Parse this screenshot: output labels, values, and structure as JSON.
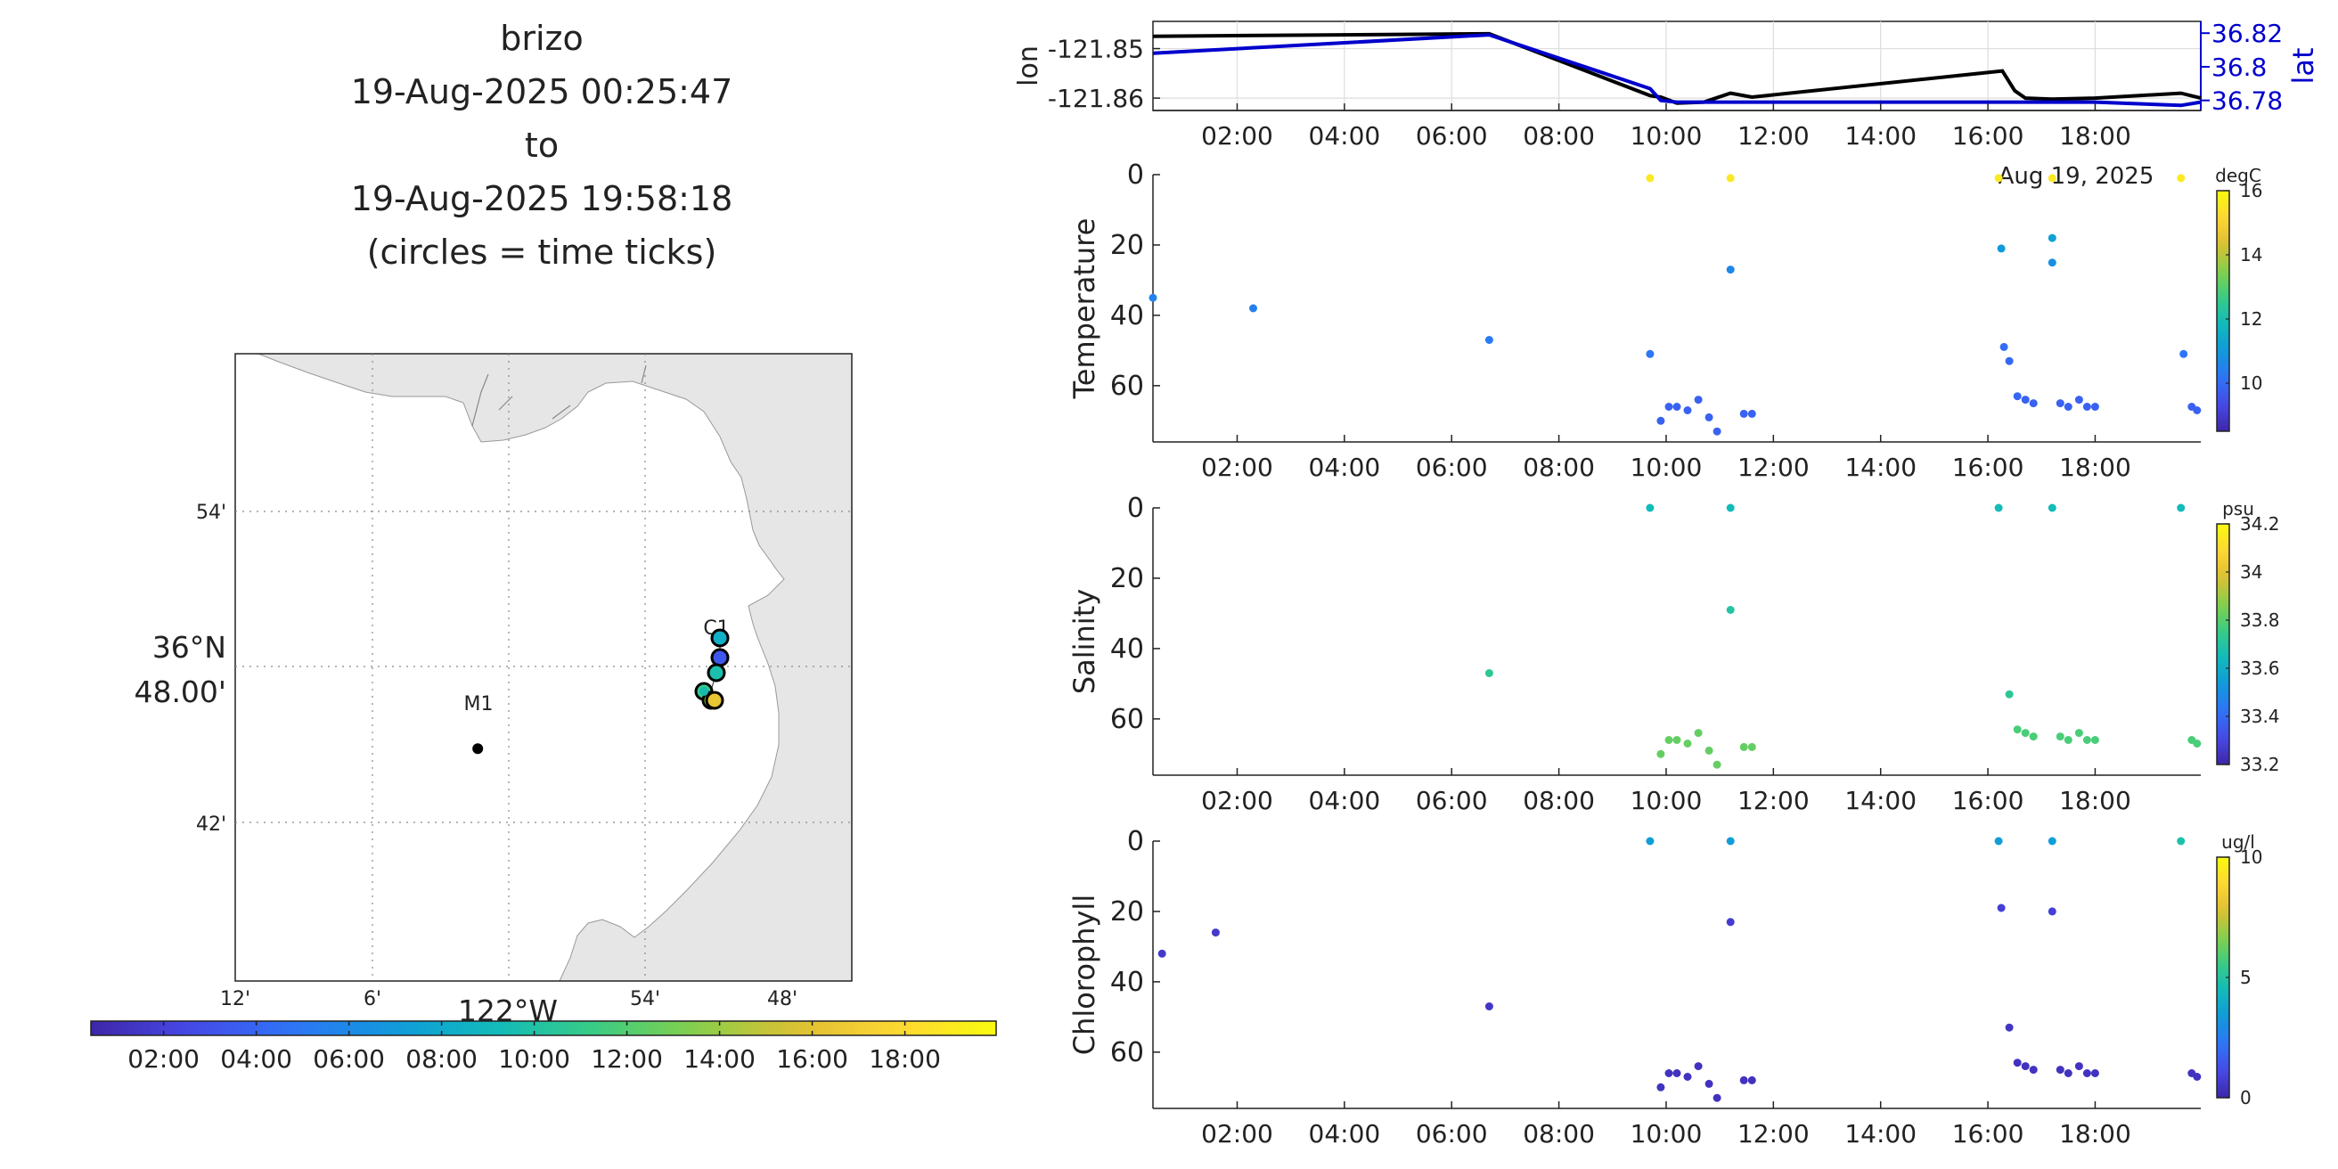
{
  "title_lines": [
    "brizo",
    "19-Aug-2025 00:25:47",
    "to",
    "19-Aug-2025 19:58:18",
    "(circles = time ticks)"
  ],
  "time_ticks": [
    "02:00",
    "04:00",
    "06:00",
    "08:00",
    "10:00",
    "12:00",
    "14:00",
    "16:00",
    "18:00"
  ],
  "date_label": "Aug 19, 2025",
  "map": {
    "lat_ticks": [
      "54'",
      "48.00'",
      "42'"
    ],
    "lat_center_label": "36°N",
    "lon_ticks": [
      "12'",
      "6'",
      "54'",
      "48'"
    ],
    "lon_center_label": "122°W",
    "stations": [
      {
        "name": "M1",
        "lon": -122.023,
        "lat": 36.747
      },
      {
        "name": "C1",
        "lon": -121.851,
        "lat": 36.795
      }
    ]
  },
  "colors": {
    "lon_line": "#000000",
    "lat_line": "#0000cc",
    "land": "#e6e6e6",
    "parula_low": "#3e26a8",
    "parula_high": "#f9fb0e"
  },
  "chart_data": [
    {
      "type": "line",
      "title": "",
      "xlabel": "",
      "ylabel": "lon",
      "y2label": "lat",
      "x_unit": "hour of 19-Aug-2025",
      "yticks": [
        -121.85,
        -121.86
      ],
      "y2ticks": [
        36.82,
        36.8,
        36.78
      ],
      "ylim": [
        -121.8625,
        -121.8445
      ],
      "y2lim": [
        36.774,
        36.827
      ],
      "xlim": [
        0.43,
        19.97
      ],
      "series": [
        {
          "name": "lon",
          "axis": "left",
          "x": [
            0.43,
            6.7,
            9.7,
            9.9,
            10.2,
            10.7,
            11.2,
            11.6,
            16.27,
            16.5,
            16.7,
            17.2,
            18.0,
            19.6,
            19.97
          ],
          "y": [
            -121.8475,
            -121.847,
            -121.8595,
            -121.8598,
            -121.861,
            -121.8608,
            -121.859,
            -121.8598,
            -121.8545,
            -121.8585,
            -121.86,
            -121.8602,
            -121.86,
            -121.859,
            -121.86
          ]
        },
        {
          "name": "lat",
          "axis": "right",
          "x": [
            0.43,
            6.7,
            9.7,
            9.9,
            10.2,
            11.2,
            12.0,
            16.3,
            18.0,
            19.6,
            19.97
          ],
          "y": [
            36.808,
            36.819,
            36.787,
            36.78,
            36.779,
            36.779,
            36.779,
            36.779,
            36.779,
            36.777,
            36.779
          ]
        }
      ]
    },
    {
      "type": "scatter",
      "title": "",
      "ylabel": "Temperature",
      "color_label": "degC",
      "clim": [
        8.5,
        16
      ],
      "cticks": [
        10,
        12,
        14,
        16
      ],
      "ylim": [
        0,
        76
      ],
      "yticks": [
        0,
        20,
        40,
        60
      ],
      "xlim": [
        0.43,
        19.97
      ],
      "x": [
        0.43,
        2.3,
        6.7,
        9.7,
        9.7,
        9.9,
        10.05,
        10.2,
        10.4,
        10.6,
        10.8,
        10.95,
        11.2,
        11.2,
        11.45,
        11.6,
        16.2,
        16.25,
        16.3,
        16.4,
        16.55,
        16.7,
        16.85,
        17.2,
        17.2,
        17.2,
        17.35,
        17.5,
        17.7,
        17.85,
        18.0,
        19.6,
        19.65,
        19.8,
        19.9
      ],
      "y": [
        35,
        38,
        47,
        1,
        51,
        70,
        66,
        66,
        67,
        64,
        69,
        73,
        1,
        27,
        68,
        68,
        1,
        21,
        49,
        53,
        63,
        64,
        65,
        1,
        18,
        25,
        65,
        66,
        64,
        66,
        66,
        1,
        51,
        66,
        67
      ],
      "values": [
        10.5,
        10.4,
        10.3,
        15.6,
        10.2,
        9.8,
        9.8,
        9.8,
        9.8,
        9.8,
        9.8,
        9.8,
        15.6,
        10.6,
        9.8,
        9.8,
        15.6,
        11.0,
        10.0,
        9.9,
        9.9,
        9.8,
        9.8,
        15.6,
        11.2,
        10.8,
        9.8,
        9.8,
        9.8,
        9.8,
        9.8,
        15.6,
        10.2,
        9.8,
        9.8
      ]
    },
    {
      "type": "scatter",
      "title": "",
      "ylabel": "Salinity",
      "color_label": "psu",
      "clim": [
        33.2,
        34.2
      ],
      "cticks": [
        33.2,
        33.4,
        33.6,
        33.8,
        34,
        34.2
      ],
      "ylim": [
        0,
        76
      ],
      "yticks": [
        0,
        20,
        40,
        60
      ],
      "xlim": [
        0.43,
        19.97
      ],
      "x": [
        9.7,
        9.9,
        10.05,
        10.2,
        10.4,
        10.6,
        10.8,
        10.95,
        11.2,
        11.2,
        11.45,
        11.6,
        6.7,
        16.2,
        16.4,
        16.55,
        16.7,
        16.85,
        17.2,
        17.35,
        17.5,
        17.7,
        17.85,
        18.0,
        19.6,
        19.8,
        19.9
      ],
      "y": [
        0,
        70,
        66,
        66,
        67,
        64,
        69,
        73,
        0,
        29,
        68,
        68,
        47,
        0,
        53,
        63,
        64,
        65,
        0,
        65,
        66,
        64,
        66,
        66,
        0,
        66,
        67
      ],
      "values": [
        33.65,
        33.82,
        33.82,
        33.82,
        33.82,
        33.82,
        33.82,
        33.82,
        33.65,
        33.7,
        33.82,
        33.82,
        33.72,
        33.65,
        33.72,
        33.78,
        33.78,
        33.78,
        33.65,
        33.78,
        33.78,
        33.78,
        33.78,
        33.78,
        33.65,
        33.78,
        33.78
      ]
    },
    {
      "type": "scatter",
      "title": "",
      "ylabel": "Chlorophyll",
      "color_label": "ug/l",
      "clim": [
        0,
        10
      ],
      "cticks": [
        0,
        5,
        10
      ],
      "ylim": [
        0,
        76
      ],
      "yticks": [
        0,
        20,
        40,
        60
      ],
      "xlim": [
        0.43,
        19.97
      ],
      "x": [
        0.6,
        1.6,
        6.7,
        9.7,
        9.9,
        10.05,
        10.2,
        10.4,
        10.6,
        10.8,
        10.95,
        11.2,
        11.2,
        11.45,
        11.6,
        16.2,
        16.25,
        16.4,
        16.55,
        16.7,
        16.85,
        17.2,
        17.2,
        17.35,
        17.5,
        17.7,
        17.85,
        18.0,
        19.6,
        19.8,
        19.9
      ],
      "y": [
        32,
        26,
        47,
        0,
        70,
        66,
        66,
        67,
        64,
        69,
        73,
        0,
        23,
        68,
        68,
        0,
        19,
        53,
        63,
        64,
        65,
        0,
        20,
        65,
        66,
        64,
        66,
        66,
        0,
        66,
        67
      ],
      "values": [
        0.6,
        0.6,
        0.5,
        3.5,
        0.4,
        0.4,
        0.4,
        0.4,
        0.4,
        0.4,
        0.4,
        3.5,
        0.7,
        0.4,
        0.4,
        3.5,
        0.8,
        0.5,
        0.4,
        0.4,
        0.4,
        3.5,
        0.8,
        0.4,
        0.4,
        0.4,
        0.4,
        0.4,
        4.8,
        0.4,
        0.4
      ]
    }
  ]
}
